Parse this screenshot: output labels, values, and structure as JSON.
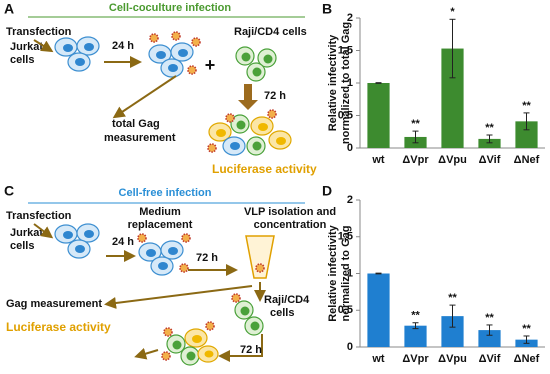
{
  "panels": {
    "A": {
      "letter": "A",
      "title": "Cell-coculture infection",
      "transfection": "Transfection",
      "jurkat": [
        "Jurkat",
        "cells"
      ],
      "time1": "24 h",
      "target": "Raji/CD4 cells",
      "plus": "+",
      "time2": "72 h",
      "gag": [
        "total Gag",
        "measurement"
      ],
      "readout": "Luciferase activity"
    },
    "C": {
      "letter": "C",
      "title": "Cell-free infection",
      "transfection": "Transfection",
      "jurkat": [
        "Jurkat",
        "cells"
      ],
      "time1": "24 h",
      "medium": [
        "Medium",
        "replacement"
      ],
      "time2": "72 h",
      "vlp": [
        "VLP isolation and",
        "concentration"
      ],
      "gag": "Gag measurement",
      "target": [
        "Raji/CD4",
        "cells"
      ],
      "time3": "72 h",
      "readout": "Luciferase activity"
    }
  },
  "chart_data": [
    {
      "type": "bar",
      "letter": "B",
      "y_label": [
        "Relative infectivity",
        "normalized to total Gag"
      ],
      "categories": [
        "wt",
        "ΔVpr",
        "ΔVpu",
        "ΔVif",
        "ΔNef"
      ],
      "values": [
        1,
        0.17,
        1.53,
        0.14,
        0.41
      ],
      "errors": [
        0.005,
        0.09,
        0.45,
        0.06,
        0.13
      ],
      "significance": [
        null,
        "**",
        "*",
        "**",
        "**"
      ],
      "color": "#3d8b2f",
      "ylim": [
        0,
        2
      ],
      "yticks": [
        0,
        0.5,
        1,
        1.5,
        2
      ]
    },
    {
      "type": "bar",
      "letter": "D",
      "y_label": [
        "Relative infectivity",
        "normalized to Gag"
      ],
      "categories": [
        "wt",
        "ΔVpr",
        "ΔVpu",
        "ΔVif",
        "ΔNef"
      ],
      "values": [
        1,
        0.29,
        0.42,
        0.23,
        0.1
      ],
      "errors": [
        0.005,
        0.04,
        0.15,
        0.07,
        0.05
      ],
      "significance": [
        null,
        "**",
        "**",
        "**",
        "**"
      ],
      "color": "#1f7fd0",
      "ylim": [
        0,
        2
      ],
      "yticks": [
        0,
        0.5,
        1,
        1.5,
        2
      ]
    }
  ]
}
